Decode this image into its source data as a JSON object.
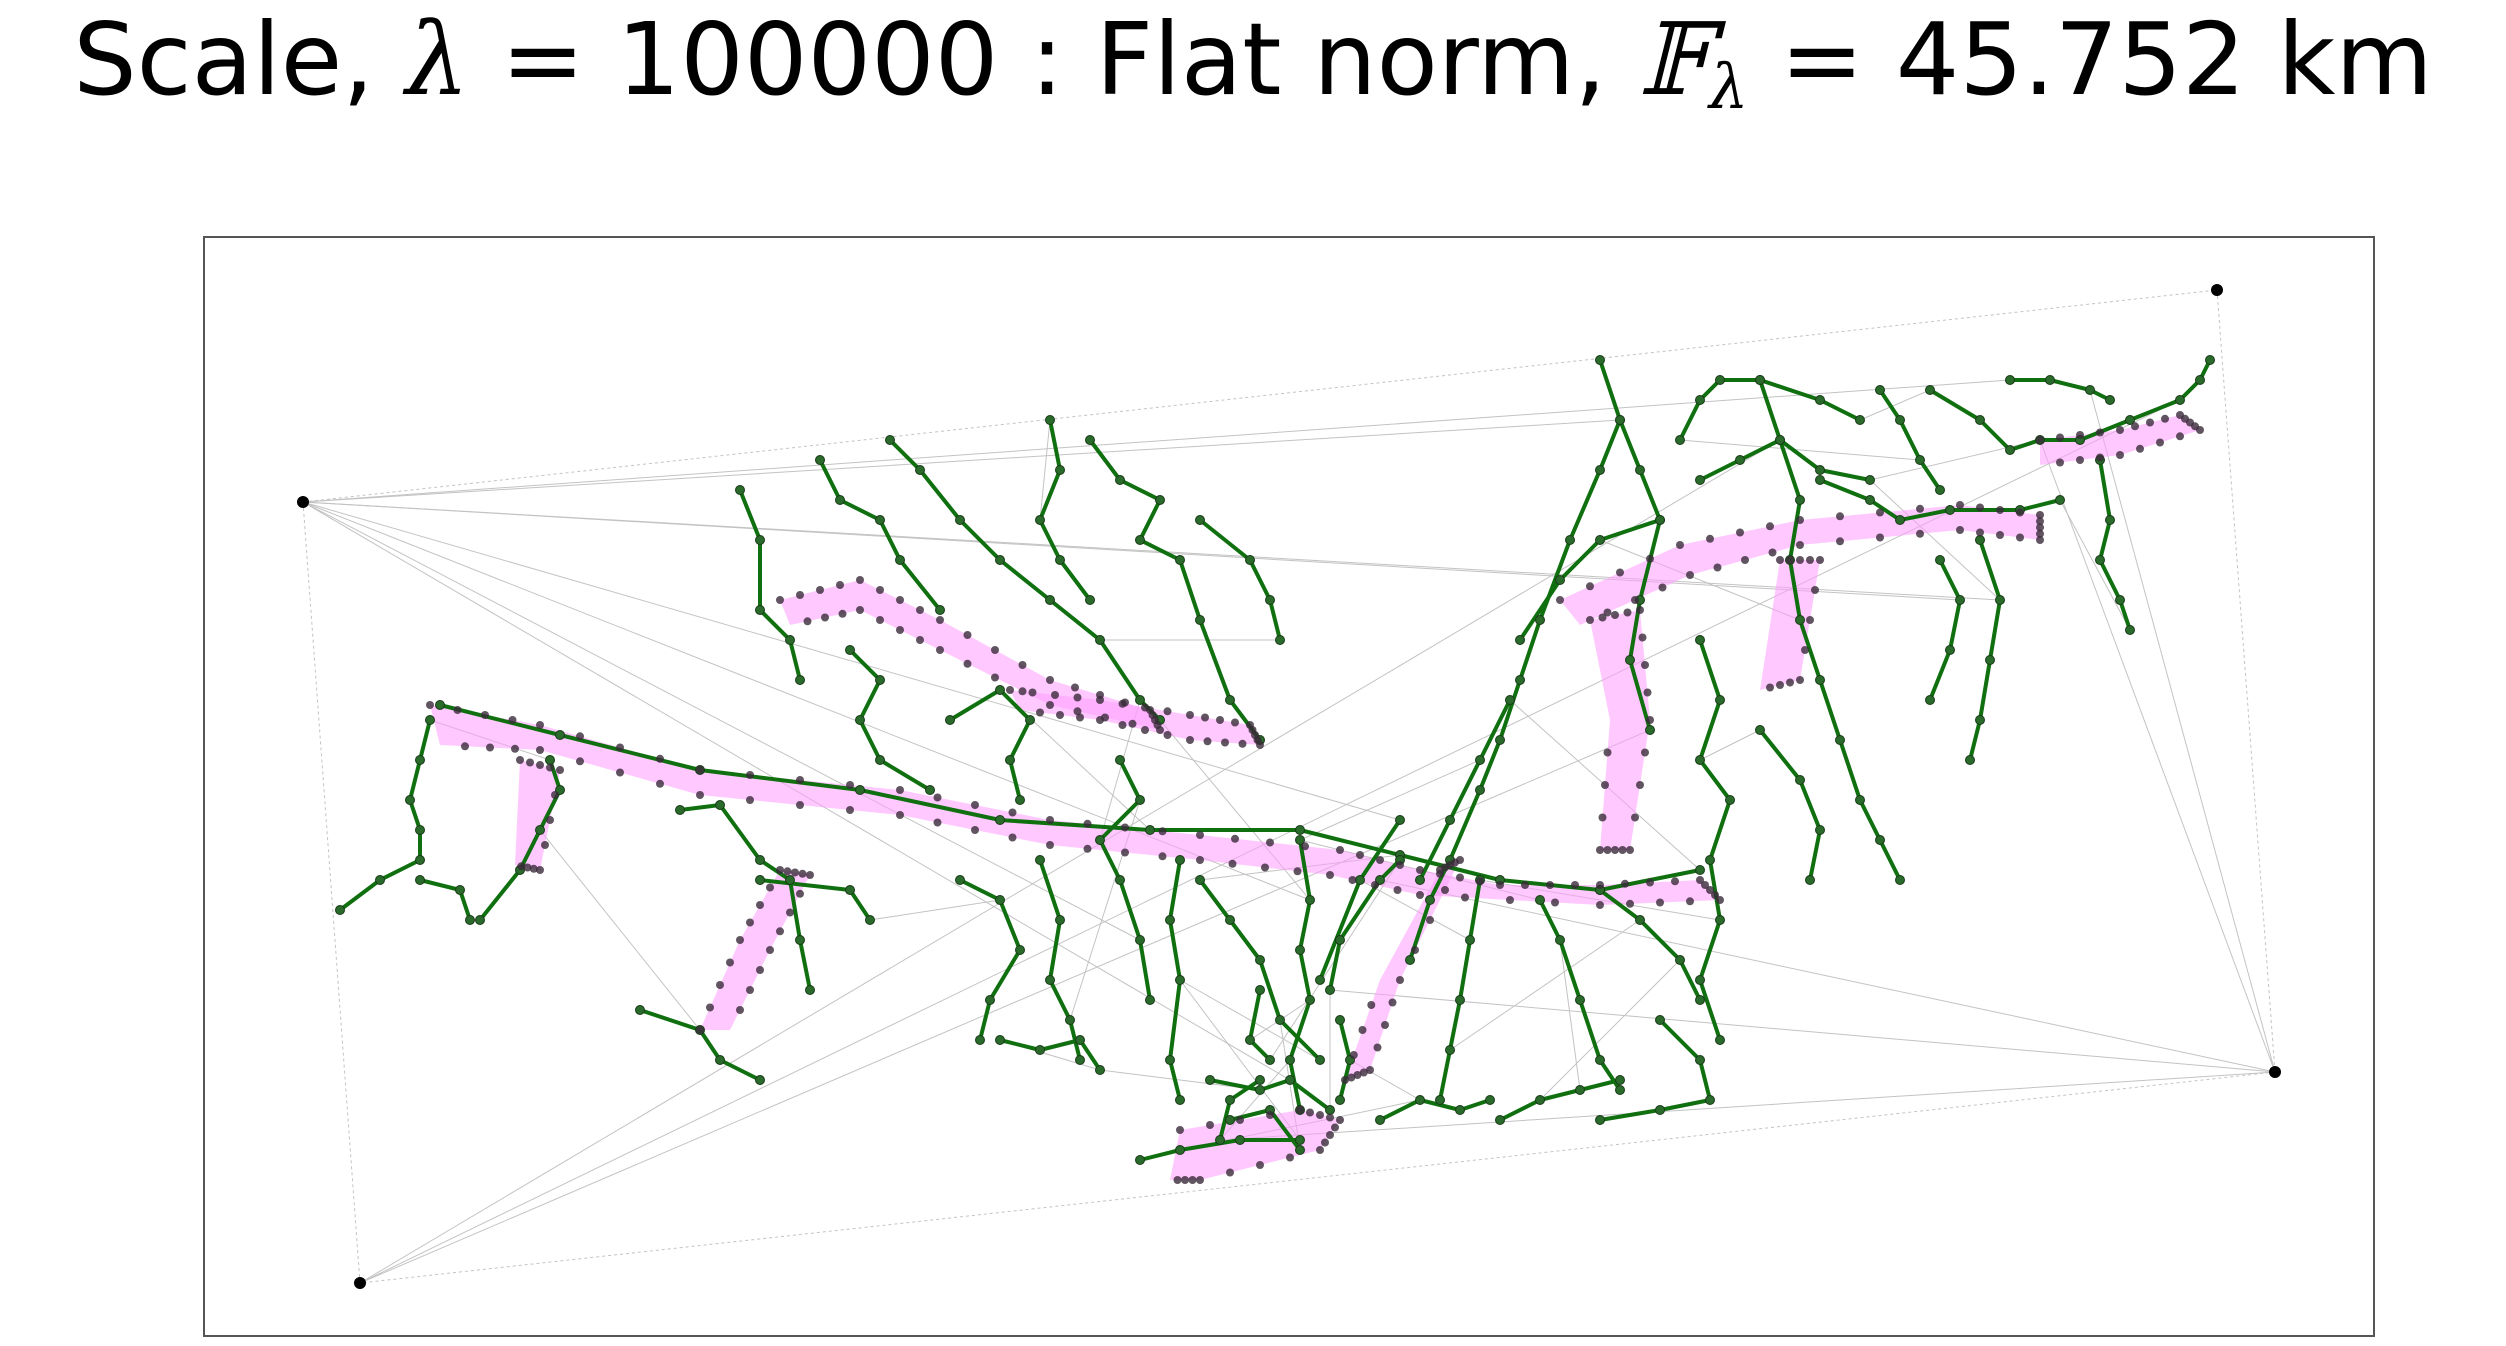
{
  "title": {
    "prefix": "Scale, ",
    "lambda_symbol": "λ",
    "equals_1": " = ",
    "scale_value": "100000",
    "separator": "  :  Flat norm, ",
    "flat_symbol": "𝔽",
    "flat_subscript": "λ",
    "equals_2": " = ",
    "norm_value": "45.752 km"
  },
  "legend": {
    "network_color": "#107010",
    "node_color": "#3a2a3a",
    "patch_color": "#ff9cff",
    "triangulation_color": "#bdbdbd",
    "frame_color": "#555555"
  }
}
